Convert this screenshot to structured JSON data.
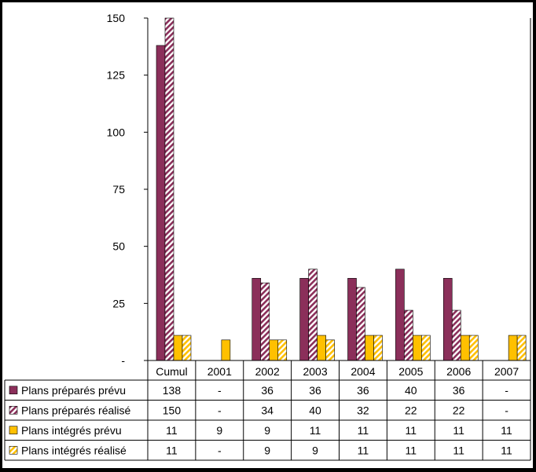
{
  "chart_data": {
    "type": "bar",
    "categories": [
      "Cumul",
      "2001",
      "2002",
      "2003",
      "2004",
      "2005",
      "2006",
      "2007"
    ],
    "ylim": [
      0,
      150
    ],
    "yticks": [
      "-",
      "25",
      "50",
      "75",
      "100",
      "125",
      "150"
    ],
    "grid": false,
    "legend": "table-left",
    "series": [
      {
        "name": "Plans préparés prévu",
        "values": [
          138,
          null,
          36,
          36,
          36,
          40,
          36,
          null
        ],
        "labels": [
          "138",
          "-",
          "36",
          "36",
          "36",
          "40",
          "36",
          "-"
        ],
        "color": "#8B2F5A",
        "pattern": "solid"
      },
      {
        "name": "Plans préparés réalisé",
        "values": [
          150,
          null,
          34,
          40,
          32,
          22,
          22,
          null
        ],
        "labels": [
          "150",
          "-",
          "34",
          "40",
          "32",
          "22",
          "22",
          "-"
        ],
        "color": "#8B2F5A",
        "pattern": "hatched"
      },
      {
        "name": "Plans intégrés prévu",
        "values": [
          11,
          9,
          9,
          11,
          11,
          11,
          11,
          11
        ],
        "labels": [
          "11",
          "9",
          "9",
          "11",
          "11",
          "11",
          "11",
          "11"
        ],
        "color": "#FFC000",
        "pattern": "solid"
      },
      {
        "name": "Plans intégrés réalisé",
        "values": [
          11,
          null,
          9,
          9,
          11,
          11,
          11,
          11
        ],
        "labels": [
          "11",
          "-",
          "9",
          "9",
          "11",
          "11",
          "11",
          "11"
        ],
        "color": "#FFC000",
        "pattern": "hatched"
      }
    ]
  }
}
